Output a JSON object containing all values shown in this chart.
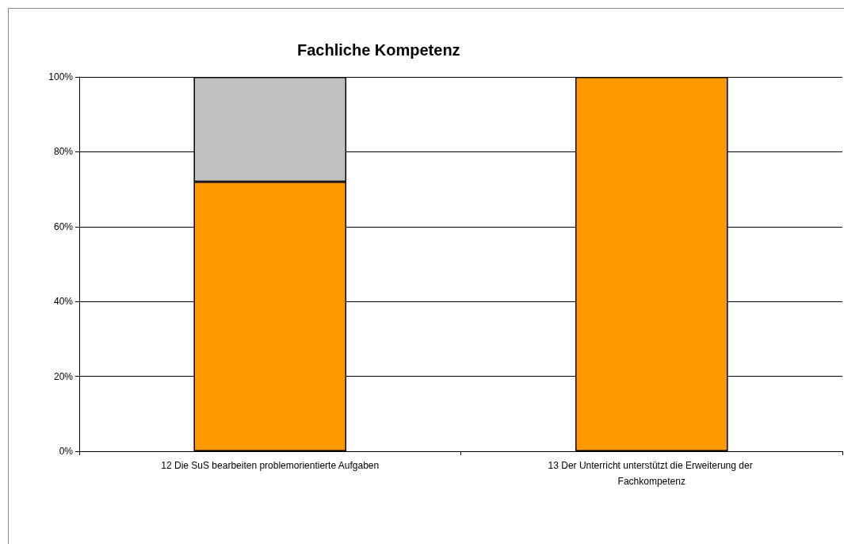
{
  "chart_data": {
    "type": "bar",
    "title": "Fachliche Kompetenz",
    "categories": [
      "12 Die SuS bearbeiten problemorientierte Aufgaben",
      "13 Der Unterricht unterstützt die Erweiterung der Fachkompetenz"
    ],
    "series": [
      {
        "color": "#ff9900",
        "values": [
          72,
          100
        ]
      },
      {
        "color": "#c0c0c0",
        "values": [
          28,
          null
        ]
      }
    ],
    "stacked": true,
    "ylim": [
      0,
      100
    ],
    "yticks": [
      {
        "value": 0,
        "label": "0%"
      },
      {
        "value": 20,
        "label": "20%"
      },
      {
        "value": 40,
        "label": "40%"
      },
      {
        "value": 60,
        "label": "60%"
      },
      {
        "value": 80,
        "label": "80%"
      },
      {
        "value": 100,
        "label": "100%"
      }
    ],
    "grid": "y"
  }
}
